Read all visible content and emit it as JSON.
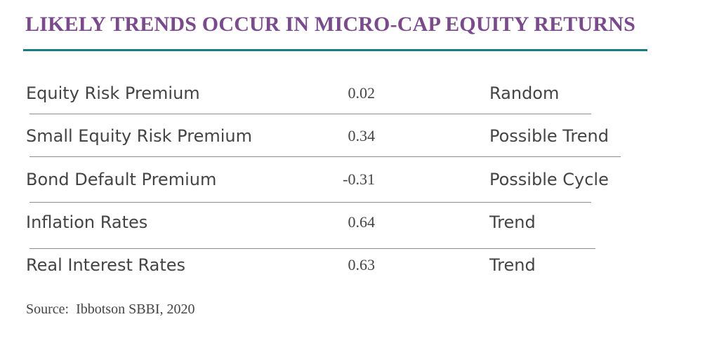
{
  "title": "LIKELY TRENDS OCCUR IN MICRO-CAP EQUITY RETURNS",
  "table": {
    "rows": [
      {
        "label": "Equity Risk Premium",
        "value": "0.02",
        "status": "Random"
      },
      {
        "label": "Small Equity Risk Premium",
        "value": "0.34",
        "status": "Possible Trend"
      },
      {
        "label": "Bond Default Premium",
        "value": "-0.31",
        "status": "Possible Cycle"
      },
      {
        "label": "Inflation Rates",
        "value": "0.64",
        "status": "Trend"
      },
      {
        "label": "Real Interest Rates",
        "value": "0.63",
        "status": "Trend"
      }
    ]
  },
  "source": "Source:  Ibbotson SBBI, 2020",
  "colors": {
    "title": "#7a4a8c",
    "title_rule": "#1a7a86",
    "text": "#444444",
    "divider": "#8c8c8c"
  }
}
